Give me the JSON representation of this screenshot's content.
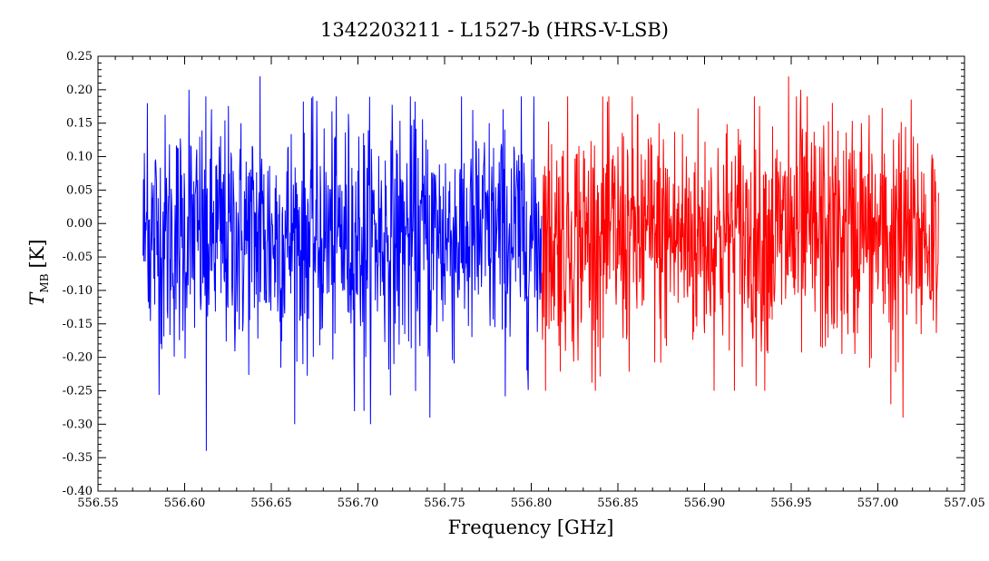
{
  "chart_data": {
    "type": "line",
    "title": "1342203211 - L1527-b (HRS-V-LSB)",
    "xlabel": "Frequency [GHz]",
    "ylabel": {
      "symbol": "T",
      "subscript": "MB",
      "unit": "[K]"
    },
    "xlim": [
      556.55,
      557.05
    ],
    "ylim": [
      -0.4,
      0.25
    ],
    "x_ticks": [
      "556.55",
      "556.60",
      "556.65",
      "556.70",
      "556.75",
      "556.80",
      "556.85",
      "556.90",
      "556.95",
      "557.00",
      "557.05"
    ],
    "y_ticks": [
      "-0.40",
      "-0.35",
      "-0.30",
      "-0.25",
      "-0.20",
      "-0.15",
      "-0.10",
      "-0.05",
      "0.00",
      "0.05",
      "0.10",
      "0.15",
      "0.20",
      "0.25"
    ],
    "grid": false,
    "series": [
      {
        "color": "#0000ff",
        "x_range": [
          556.576,
          556.806
        ],
        "envelope_min": -0.34,
        "envelope_max": 0.22,
        "mean": -0.02,
        "noise_rms": 0.09,
        "features": [
          {
            "x": 556.6125,
            "y": -0.34
          },
          {
            "x": 556.6435,
            "y": 0.22
          },
          {
            "x": 556.6025,
            "y": 0.2
          },
          {
            "x": 556.7415,
            "y": -0.29
          },
          {
            "x": 556.7035,
            "y": -0.28
          },
          {
            "x": 556.5785,
            "y": 0.18
          }
        ]
      },
      {
        "color": "#ff0000",
        "x_range": [
          556.806,
          557.035
        ],
        "envelope_min": -0.29,
        "envelope_max": 0.22,
        "mean": -0.02,
        "noise_rms": 0.09,
        "features": [
          {
            "x": 556.9485,
            "y": 0.22
          },
          {
            "x": 557.0145,
            "y": -0.29
          },
          {
            "x": 557.0075,
            "y": -0.27
          },
          {
            "x": 556.9555,
            "y": 0.2
          },
          {
            "x": 556.9905,
            "y": 0.15
          }
        ]
      }
    ]
  }
}
